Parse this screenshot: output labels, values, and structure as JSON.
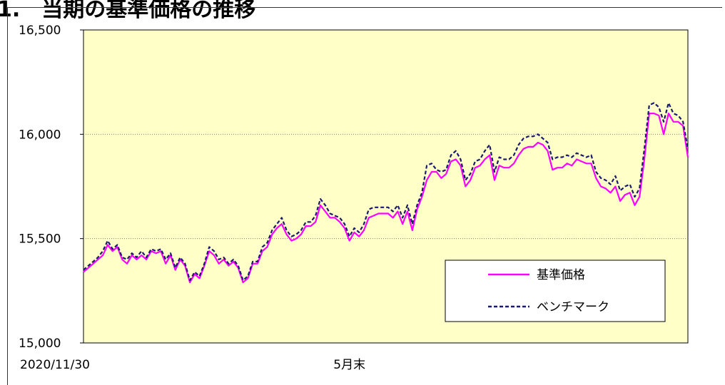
{
  "page": {
    "title": "1.　当期の基準価格の推移"
  },
  "chart_data": {
    "type": "line",
    "title": "",
    "xlabel": "",
    "ylabel": "",
    "ylim": [
      15000,
      16500
    ],
    "yticks": [
      15000,
      15500,
      16000,
      16500
    ],
    "ytick_labels": [
      "15,000",
      "15,500",
      "16,000",
      "16,500"
    ],
    "grid": "horizontal-dotted",
    "background_color": "#FFFFC8",
    "x_axis_labels": [
      {
        "label": "2020/11/30",
        "t": 0
      },
      {
        "label": "5月末",
        "t": 0.44
      }
    ],
    "legend_position": "bottom-right",
    "x": [
      0,
      4,
      6,
      8,
      10,
      12,
      14,
      16,
      18,
      20,
      22,
      24,
      26,
      28,
      30,
      32,
      34,
      36,
      38,
      40,
      42,
      44,
      46,
      48,
      50,
      52,
      54,
      56,
      58,
      60,
      62,
      64,
      66,
      68,
      70,
      72,
      74,
      76,
      78,
      80,
      82,
      84,
      86,
      88,
      90,
      92,
      94,
      96,
      98,
      100,
      102,
      104,
      106,
      108,
      110,
      112,
      114,
      116,
      118,
      120,
      122,
      124,
      126,
      128,
      130,
      132,
      134,
      136,
      138,
      140,
      142,
      144,
      146,
      148,
      150,
      152,
      154,
      156,
      158,
      160,
      162,
      164,
      166,
      168,
      170,
      172,
      174,
      176,
      178,
      180,
      182,
      184,
      186,
      188,
      190,
      192,
      194,
      196,
      198,
      200,
      202,
      204,
      206,
      208,
      210,
      212,
      214,
      216,
      218,
      220,
      222,
      224,
      226,
      228,
      230,
      232,
      234,
      236,
      238,
      240,
      242,
      244,
      246,
      248,
      250
    ],
    "series": [
      {
        "name": "基準価格",
        "color": "#FF00FF",
        "dash": "solid",
        "values": [
          15340,
          15380,
          15400,
          15420,
          15470,
          15440,
          15460,
          15400,
          15380,
          15420,
          15400,
          15420,
          15400,
          15440,
          15430,
          15440,
          15380,
          15420,
          15350,
          15400,
          15370,
          15290,
          15330,
          15310,
          15370,
          15440,
          15420,
          15380,
          15400,
          15370,
          15390,
          15360,
          15290,
          15310,
          15380,
          15380,
          15440,
          15460,
          15520,
          15550,
          15570,
          15520,
          15490,
          15500,
          15520,
          15560,
          15560,
          15580,
          15660,
          15630,
          15600,
          15600,
          15580,
          15550,
          15490,
          15530,
          15510,
          15540,
          15600,
          15610,
          15620,
          15620,
          15620,
          15600,
          15630,
          15570,
          15630,
          15540,
          15640,
          15700,
          15780,
          15820,
          15820,
          15790,
          15810,
          15870,
          15880,
          15850,
          15750,
          15780,
          15840,
          15850,
          15880,
          15900,
          15780,
          15850,
          15840,
          15840,
          15860,
          15900,
          15930,
          15940,
          15940,
          15960,
          15950,
          15920,
          15830,
          15840,
          15840,
          15860,
          15850,
          15880,
          15870,
          15860,
          15860,
          15790,
          15750,
          15740,
          15720,
          15750,
          15680,
          15710,
          15720,
          15660,
          15700,
          15880,
          16100,
          16100,
          16090,
          16000,
          16100,
          16060,
          16060,
          16040,
          15890
        ]
      },
      {
        "name": "ベンチマーク",
        "color": "#1A1A6E",
        "dash": "dashed",
        "values": [
          15350,
          15390,
          15410,
          15440,
          15490,
          15450,
          15470,
          15410,
          15400,
          15430,
          15410,
          15440,
          15410,
          15450,
          15440,
          15450,
          15400,
          15430,
          15360,
          15410,
          15380,
          15300,
          15340,
          15320,
          15380,
          15460,
          15440,
          15400,
          15410,
          15380,
          15400,
          15370,
          15300,
          15320,
          15390,
          15390,
          15460,
          15480,
          15540,
          15570,
          15600,
          15540,
          15510,
          15520,
          15540,
          15580,
          15580,
          15610,
          15690,
          15660,
          15620,
          15610,
          15600,
          15570,
          15510,
          15550,
          15530,
          15570,
          15640,
          15650,
          15650,
          15650,
          15650,
          15630,
          15660,
          15600,
          15660,
          15570,
          15660,
          15720,
          15850,
          15860,
          15830,
          15820,
          15830,
          15900,
          15920,
          15880,
          15780,
          15810,
          15870,
          15880,
          15920,
          15950,
          15820,
          15890,
          15880,
          15880,
          15900,
          15950,
          15980,
          15990,
          15990,
          16000,
          15980,
          15960,
          15880,
          15890,
          15890,
          15900,
          15890,
          15910,
          15900,
          15890,
          15900,
          15820,
          15790,
          15780,
          15760,
          15800,
          15730,
          15750,
          15760,
          15700,
          15740,
          15930,
          16140,
          16150,
          16130,
          16060,
          16150,
          16100,
          16090,
          16060,
          15930
        ]
      }
    ]
  }
}
